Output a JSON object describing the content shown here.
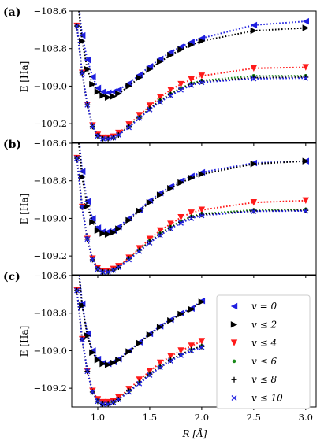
{
  "chart_data": [
    {
      "type": "line",
      "panel_label": "(a)",
      "xlim": [
        0.75,
        3.1
      ],
      "ylim": [
        -109.3,
        -108.6
      ],
      "xticks": [
        1.0,
        1.5,
        2.0,
        2.5,
        3.0
      ],
      "yticks": [
        -109.2,
        -109.0,
        -108.8,
        -108.6
      ],
      "ytick_labels": [
        "−109.2",
        "−109.0",
        "−108.8",
        "−108.6"
      ],
      "ylabel": "E [Ha]",
      "series": [
        {
          "name": "v = 0",
          "color": "#1f1fe0",
          "marker": "triangle-left",
          "x": [
            0.8,
            0.85,
            0.9,
            0.95,
            1.0,
            1.05,
            1.1,
            1.15,
            1.2,
            1.3,
            1.4,
            1.5,
            1.6,
            1.7,
            1.8,
            1.9,
            2.0,
            2.5,
            3.0
          ],
          "y": [
            -108.48,
            -108.73,
            -108.86,
            -108.95,
            -109.01,
            -109.03,
            -109.035,
            -109.03,
            -109.02,
            -108.985,
            -108.94,
            -108.895,
            -108.855,
            -108.82,
            -108.79,
            -108.765,
            -108.745,
            -108.675,
            -108.655
          ]
        },
        {
          "name": "v ≤ 2",
          "color": "#000000",
          "marker": "triangle-right",
          "x": [
            0.8,
            0.85,
            0.9,
            0.95,
            1.0,
            1.05,
            1.1,
            1.15,
            1.2,
            1.3,
            1.4,
            1.5,
            1.6,
            1.7,
            1.8,
            1.9,
            2.0,
            2.5,
            3.0
          ],
          "y": [
            -108.5,
            -108.76,
            -108.91,
            -108.99,
            -109.03,
            -109.05,
            -109.06,
            -109.055,
            -109.04,
            -109.0,
            -108.955,
            -108.91,
            -108.87,
            -108.835,
            -108.805,
            -108.78,
            -108.76,
            -108.705,
            -108.69
          ]
        },
        {
          "name": "v ≤ 4",
          "color": "#ff1a1a",
          "marker": "triangle-down",
          "x": [
            0.8,
            0.85,
            0.9,
            0.95,
            1.0,
            1.05,
            1.1,
            1.15,
            1.2,
            1.3,
            1.4,
            1.5,
            1.6,
            1.7,
            1.8,
            1.9,
            2.0,
            2.5,
            3.0
          ],
          "y": [
            -108.68,
            -108.93,
            -109.1,
            -109.21,
            -109.26,
            -109.275,
            -109.275,
            -109.27,
            -109.25,
            -109.205,
            -109.155,
            -109.105,
            -109.06,
            -109.02,
            -108.99,
            -108.965,
            -108.945,
            -108.905,
            -108.9
          ]
        },
        {
          "name": "v ≤ 6",
          "color": "#1a8a1a",
          "marker": "circle",
          "x": [
            0.8,
            0.85,
            0.9,
            0.95,
            1.0,
            1.05,
            1.1,
            1.15,
            1.2,
            1.3,
            1.4,
            1.5,
            1.6,
            1.7,
            1.8,
            1.9,
            2.0,
            2.5,
            3.0
          ],
          "y": [
            -108.68,
            -108.93,
            -109.1,
            -109.215,
            -109.265,
            -109.28,
            -109.28,
            -109.275,
            -109.26,
            -109.215,
            -109.165,
            -109.12,
            -109.075,
            -109.04,
            -109.01,
            -108.985,
            -108.97,
            -108.945,
            -108.945
          ]
        },
        {
          "name": "v ≤ 8",
          "color": "#000000",
          "marker": "plus",
          "x": [
            0.8,
            0.85,
            0.9,
            0.95,
            1.0,
            1.05,
            1.1,
            1.15,
            1.2,
            1.3,
            1.4,
            1.5,
            1.6,
            1.7,
            1.8,
            1.9,
            2.0,
            2.5,
            3.0
          ],
          "y": [
            -108.68,
            -108.93,
            -109.1,
            -109.215,
            -109.265,
            -109.28,
            -109.28,
            -109.275,
            -109.26,
            -109.215,
            -109.17,
            -109.12,
            -109.08,
            -109.045,
            -109.015,
            -108.99,
            -108.975,
            -108.955,
            -108.952
          ]
        },
        {
          "name": "v ≤ 10",
          "color": "#1f1fe0",
          "marker": "x",
          "x": [
            0.8,
            0.85,
            0.9,
            0.95,
            1.0,
            1.05,
            1.1,
            1.15,
            1.2,
            1.3,
            1.4,
            1.5,
            1.6,
            1.7,
            1.8,
            1.9,
            2.0,
            2.5,
            3.0
          ],
          "y": [
            -108.68,
            -108.93,
            -109.1,
            -109.215,
            -109.265,
            -109.28,
            -109.28,
            -109.275,
            -109.26,
            -109.22,
            -109.17,
            -109.125,
            -109.085,
            -109.05,
            -109.02,
            -108.995,
            -108.98,
            -108.96,
            -108.957
          ]
        }
      ]
    },
    {
      "type": "line",
      "panel_label": "(b)",
      "xlim": [
        0.75,
        3.1
      ],
      "ylim": [
        -109.3,
        -108.6
      ],
      "xticks": [
        1.0,
        1.5,
        2.0,
        2.5,
        3.0
      ],
      "yticks": [
        -109.2,
        -109.0,
        -108.8,
        -108.6
      ],
      "ytick_labels": [
        "−109.2",
        "−109.0",
        "−108.8",
        "−108.6"
      ],
      "ylabel": "E [Ha]",
      "series": [
        {
          "name": "v = 0",
          "color": "#1f1fe0",
          "marker": "triangle-left",
          "x": [
            0.8,
            0.85,
            0.9,
            0.95,
            1.0,
            1.05,
            1.1,
            1.15,
            1.2,
            1.3,
            1.4,
            1.5,
            1.6,
            1.7,
            1.8,
            1.9,
            2.0,
            2.5,
            3.0
          ],
          "y": [
            -108.45,
            -108.75,
            -108.91,
            -109.0,
            -109.05,
            -109.07,
            -109.07,
            -109.065,
            -109.045,
            -109.0,
            -108.955,
            -108.905,
            -108.865,
            -108.83,
            -108.8,
            -108.775,
            -108.755,
            -108.705,
            -108.695
          ]
        },
        {
          "name": "v ≤ 2",
          "color": "#000000",
          "marker": "triangle-right",
          "x": [
            0.8,
            0.85,
            0.9,
            0.95,
            1.0,
            1.05,
            1.1,
            1.15,
            1.2,
            1.3,
            1.4,
            1.5,
            1.6,
            1.7,
            1.8,
            1.9,
            2.0,
            2.5,
            3.0
          ],
          "y": [
            -108.5,
            -108.78,
            -108.935,
            -109.02,
            -109.065,
            -109.08,
            -109.085,
            -109.075,
            -109.055,
            -109.01,
            -108.96,
            -108.915,
            -108.875,
            -108.84,
            -108.81,
            -108.785,
            -108.765,
            -108.71,
            -108.695
          ]
        },
        {
          "name": "v ≤ 4",
          "color": "#ff1a1a",
          "marker": "triangle-down",
          "x": [
            0.8,
            0.85,
            0.9,
            0.95,
            1.0,
            1.05,
            1.1,
            1.15,
            1.2,
            1.3,
            1.4,
            1.5,
            1.6,
            1.7,
            1.8,
            1.9,
            2.0,
            2.5,
            3.0
          ],
          "y": [
            -108.68,
            -108.94,
            -109.11,
            -109.215,
            -109.265,
            -109.28,
            -109.28,
            -109.27,
            -109.255,
            -109.21,
            -109.16,
            -109.11,
            -109.065,
            -109.03,
            -108.995,
            -108.97,
            -108.955,
            -108.915,
            -108.905
          ]
        },
        {
          "name": "v ≤ 6",
          "color": "#1a8a1a",
          "marker": "circle",
          "x": [
            0.8,
            0.85,
            0.9,
            0.95,
            1.0,
            1.05,
            1.1,
            1.15,
            1.2,
            1.3,
            1.4,
            1.5,
            1.6,
            1.7,
            1.8,
            1.9,
            2.0,
            2.5,
            3.0
          ],
          "y": [
            -108.68,
            -108.94,
            -109.11,
            -109.22,
            -109.27,
            -109.285,
            -109.285,
            -109.275,
            -109.26,
            -109.215,
            -109.17,
            -109.12,
            -109.08,
            -109.045,
            -109.015,
            -108.99,
            -108.975,
            -108.955,
            -108.952
          ]
        },
        {
          "name": "v ≤ 8",
          "color": "#000000",
          "marker": "plus",
          "x": [
            0.8,
            0.85,
            0.9,
            0.95,
            1.0,
            1.05,
            1.1,
            1.15,
            1.2,
            1.3,
            1.4,
            1.5,
            1.6,
            1.7,
            1.8,
            1.9,
            2.0,
            2.5,
            3.0
          ],
          "y": [
            -108.68,
            -108.94,
            -109.11,
            -109.22,
            -109.27,
            -109.285,
            -109.285,
            -109.275,
            -109.26,
            -109.215,
            -109.17,
            -109.125,
            -109.085,
            -109.05,
            -109.02,
            -108.995,
            -108.98,
            -108.96,
            -108.957
          ]
        },
        {
          "name": "v ≤ 10",
          "color": "#1f1fe0",
          "marker": "x",
          "x": [
            0.8,
            0.85,
            0.9,
            0.95,
            1.0,
            1.05,
            1.1,
            1.15,
            1.2,
            1.3,
            1.4,
            1.5,
            1.6,
            1.7,
            1.8,
            1.9,
            2.0,
            2.5,
            3.0
          ],
          "y": [
            -108.68,
            -108.94,
            -109.11,
            -109.22,
            -109.27,
            -109.285,
            -109.285,
            -109.275,
            -109.26,
            -109.22,
            -109.175,
            -109.13,
            -109.09,
            -109.055,
            -109.025,
            -109.0,
            -108.985,
            -108.962,
            -108.96
          ]
        }
      ]
    },
    {
      "type": "line",
      "panel_label": "(c)",
      "xlim": [
        0.75,
        3.1
      ],
      "ylim": [
        -109.3,
        -108.6
      ],
      "xticks": [
        1.0,
        1.5,
        2.0,
        2.5,
        3.0
      ],
      "xtick_labels": [
        "1.0",
        "1.5",
        "2.0",
        "2.5",
        "3.0"
      ],
      "yticks": [
        -109.2,
        -109.0,
        -108.8,
        -108.6
      ],
      "ytick_labels": [
        "−109.2",
        "−109.0",
        "−108.8",
        "−108.6"
      ],
      "ylabel": "E [Ha]",
      "xlabel": "R [Å]",
      "legend_position": "bottom-right",
      "series": [
        {
          "name": "v = 0",
          "color": "#1f1fe0",
          "marker": "triangle-left",
          "x": [
            0.8,
            0.85,
            0.9,
            0.95,
            1.0,
            1.05,
            1.1,
            1.15,
            1.2,
            1.3,
            1.4,
            1.5,
            1.6,
            1.7,
            1.8,
            1.9,
            2.0
          ],
          "y": [
            -108.45,
            -108.75,
            -108.91,
            -109.0,
            -109.045,
            -109.065,
            -109.07,
            -109.06,
            -109.045,
            -109.0,
            -108.955,
            -108.91,
            -108.87,
            -108.835,
            -108.8,
            -108.775,
            -108.735
          ]
        },
        {
          "name": "v ≤ 2",
          "color": "#000000",
          "marker": "triangle-right",
          "x": [
            0.8,
            0.85,
            0.9,
            0.95,
            1.0,
            1.05,
            1.1,
            1.15,
            1.2,
            1.3,
            1.4,
            1.5,
            1.6,
            1.7,
            1.8,
            1.9,
            2.0
          ],
          "y": [
            -108.48,
            -108.76,
            -108.92,
            -109.01,
            -109.05,
            -109.07,
            -109.075,
            -109.065,
            -109.05,
            -109.005,
            -108.96,
            -108.915,
            -108.875,
            -108.84,
            -108.805,
            -108.78,
            -108.74
          ]
        },
        {
          "name": "v ≤ 4",
          "color": "#ff1a1a",
          "marker": "triangle-down",
          "x": [
            0.8,
            0.85,
            0.9,
            0.95,
            1.0,
            1.05,
            1.1,
            1.15,
            1.2,
            1.3,
            1.4,
            1.5,
            1.6,
            1.7,
            1.8,
            1.9,
            2.0
          ],
          "y": [
            -108.68,
            -108.94,
            -109.11,
            -109.215,
            -109.26,
            -109.275,
            -109.275,
            -109.27,
            -109.25,
            -109.205,
            -109.155,
            -109.11,
            -109.065,
            -109.03,
            -109.0,
            -108.975,
            -108.95
          ]
        },
        {
          "name": "v ≤ 6",
          "color": "#1a8a1a",
          "marker": "circle",
          "x": [
            0.8,
            0.85,
            0.9,
            0.95,
            1.0,
            1.05,
            1.1,
            1.15,
            1.2,
            1.3,
            1.4,
            1.5,
            1.6,
            1.7,
            1.8,
            1.9,
            2.0
          ],
          "y": [
            -108.68,
            -108.94,
            -109.11,
            -109.22,
            -109.27,
            -109.285,
            -109.285,
            -109.275,
            -109.26,
            -109.215,
            -109.17,
            -109.125,
            -109.085,
            -109.05,
            -109.02,
            -108.995,
            -108.975
          ]
        },
        {
          "name": "v ≤ 8",
          "color": "#000000",
          "marker": "plus",
          "x": [
            0.8,
            0.85,
            0.9,
            0.95,
            1.0,
            1.05,
            1.1,
            1.15,
            1.2,
            1.3,
            1.4,
            1.5,
            1.6,
            1.7,
            1.8,
            1.9,
            2.0
          ],
          "y": [
            -108.68,
            -108.94,
            -109.11,
            -109.22,
            -109.27,
            -109.285,
            -109.285,
            -109.275,
            -109.26,
            -109.215,
            -109.17,
            -109.125,
            -109.085,
            -109.05,
            -109.02,
            -108.995,
            -108.978
          ]
        },
        {
          "name": "v ≤ 10",
          "color": "#1f1fe0",
          "marker": "x",
          "x": [
            0.8,
            0.85,
            0.9,
            0.95,
            1.0,
            1.05,
            1.1,
            1.15,
            1.2,
            1.3,
            1.4,
            1.5,
            1.6,
            1.7,
            1.8,
            1.9,
            2.0
          ],
          "y": [
            -108.68,
            -108.94,
            -109.11,
            -109.22,
            -109.27,
            -109.285,
            -109.285,
            -109.275,
            -109.26,
            -109.22,
            -109.175,
            -109.13,
            -109.09,
            -109.055,
            -109.025,
            -109.0,
            -108.982
          ]
        }
      ]
    }
  ]
}
